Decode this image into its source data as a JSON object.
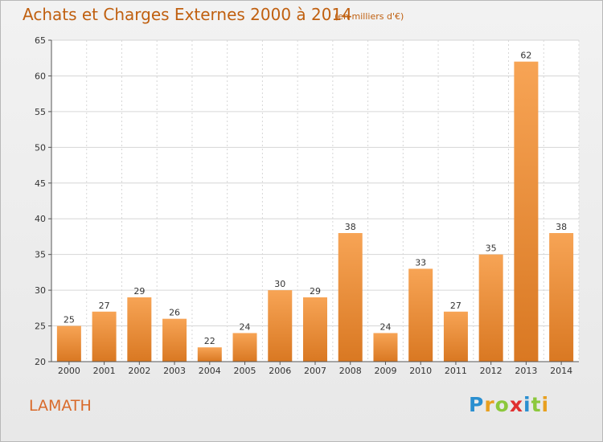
{
  "chart_data": {
    "type": "bar",
    "title": "Achats et Charges Externes 2000 à 2014",
    "subtitle": "(en milliers d'€)",
    "categories": [
      "2000",
      "2001",
      "2002",
      "2003",
      "2004",
      "2005",
      "2006",
      "2007",
      "2008",
      "2009",
      "2010",
      "2011",
      "2012",
      "2013",
      "2014"
    ],
    "values": [
      25,
      27,
      29,
      26,
      22,
      24,
      30,
      29,
      38,
      24,
      33,
      27,
      35,
      62,
      38
    ],
    "ylim": [
      20,
      65
    ],
    "yticks": [
      20,
      25,
      30,
      35,
      40,
      45,
      50,
      55,
      60,
      65
    ],
    "grid": true,
    "bar_color": "#f0903a"
  },
  "commune": "LAMATH",
  "logo": {
    "letters": [
      "P",
      "r",
      "o",
      "x",
      "i",
      "t",
      "i"
    ],
    "colors": [
      "#2a8fd0",
      "#e8a020",
      "#8cc83c",
      "#e03030",
      "#2a8fd0",
      "#8cc83c",
      "#e8a020"
    ]
  }
}
